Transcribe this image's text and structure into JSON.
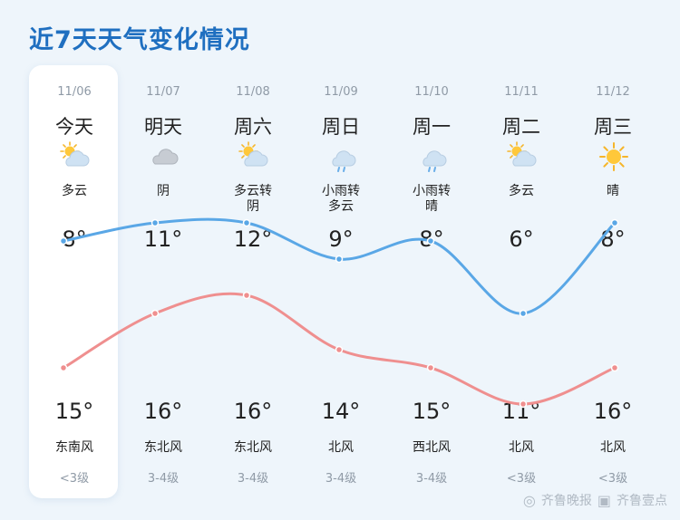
{
  "title": "近7天天气变化情况",
  "days": [
    {
      "date": "11/06",
      "day": "今天",
      "cond": "多云",
      "high": "8°",
      "low": "15°",
      "wind": "东南风",
      "level": "<3级",
      "icon": "partly-cloudy-icon"
    },
    {
      "date": "11/07",
      "day": "明天",
      "cond": "阴",
      "high": "11°",
      "low": "16°",
      "wind": "东北风",
      "level": "3-4级",
      "icon": "overcast-icon"
    },
    {
      "date": "11/08",
      "day": "周六",
      "cond": "多云转\n阴",
      "high": "12°",
      "low": "16°",
      "wind": "东北风",
      "level": "3-4级",
      "icon": "partly-cloudy-icon"
    },
    {
      "date": "11/09",
      "day": "周日",
      "cond": "小雨转\n多云",
      "high": "9°",
      "low": "14°",
      "wind": "北风",
      "level": "3-4级",
      "icon": "light-rain-icon"
    },
    {
      "date": "11/10",
      "day": "周一",
      "cond": "小雨转\n晴",
      "high": "8°",
      "low": "15°",
      "wind": "西北风",
      "level": "3-4级",
      "icon": "light-rain-icon"
    },
    {
      "date": "11/11",
      "day": "周二",
      "cond": "多云",
      "high": "6°",
      "low": "11°",
      "wind": "北风",
      "level": "<3级",
      "icon": "partly-cloudy-icon"
    },
    {
      "date": "11/12",
      "day": "周三",
      "cond": "晴",
      "high": "8°",
      "low": "16°",
      "wind": "北风",
      "level": "<3级",
      "icon": "sunny-icon"
    }
  ],
  "chart_data": {
    "type": "line",
    "x": [
      "11/06",
      "11/07",
      "11/08",
      "11/09",
      "11/10",
      "11/11",
      "11/12"
    ],
    "series": [
      {
        "values": [
          8,
          11,
          12,
          9,
          8,
          6,
          8
        ],
        "color": "#ef8f8f"
      },
      {
        "values": [
          15,
          16,
          16,
          14,
          15,
          11,
          16
        ],
        "color": "#5aa7e6"
      }
    ]
  },
  "colors": {
    "title": "#1f6fc0",
    "high_line": "#ef8f8f",
    "low_line": "#5aa7e6"
  },
  "watermark": {
    "brand": "齐鲁晚报",
    "platform": "齐鲁壹点"
  }
}
